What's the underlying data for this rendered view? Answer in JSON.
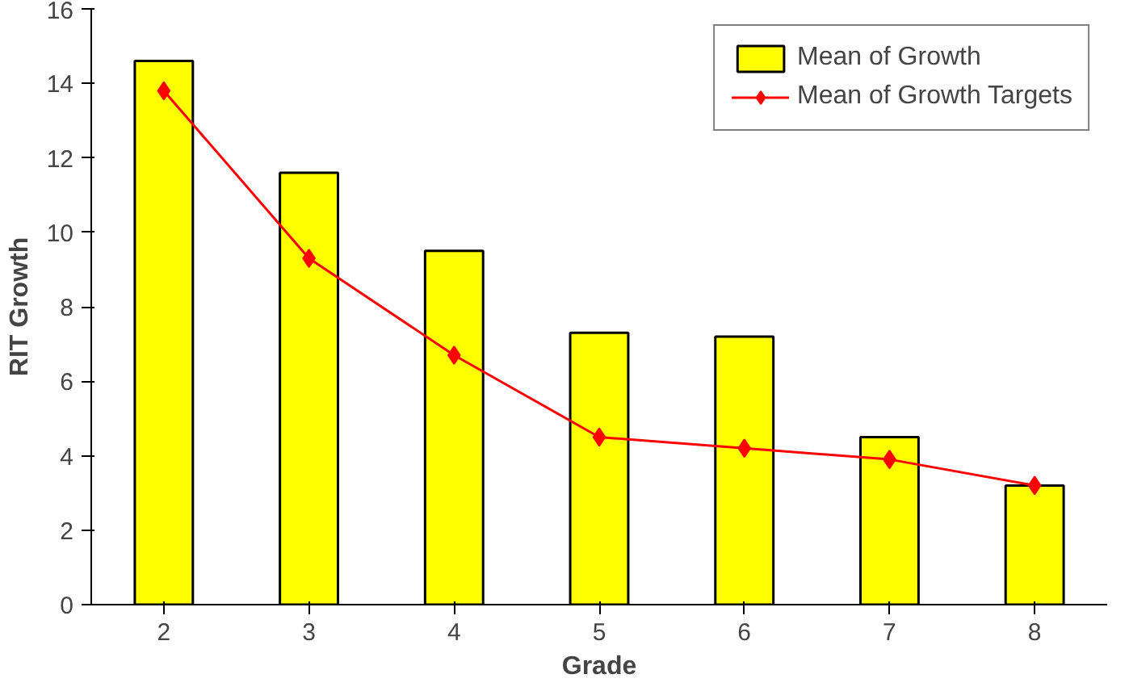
{
  "chart_data": {
    "type": "bar",
    "xlabel": "Grade",
    "ylabel": "RIT Growth",
    "categories": [
      "2",
      "3",
      "4",
      "5",
      "6",
      "7",
      "8"
    ],
    "series": [
      {
        "name": "Mean of Growth",
        "color": "#ffff00",
        "values": [
          14.6,
          11.6,
          9.5,
          7.3,
          7.2,
          4.5,
          3.2
        ]
      },
      {
        "name": "Mean of Growth Targets",
        "type": "line",
        "color": "#ff0000",
        "marker": "diamond",
        "values": [
          13.8,
          9.3,
          6.7,
          4.5,
          4.2,
          3.9,
          3.2
        ]
      }
    ],
    "ylim": [
      0,
      16
    ],
    "yticks": [
      0,
      2,
      4,
      6,
      8,
      10,
      12,
      14,
      16
    ],
    "grid": false,
    "legend": "top right"
  }
}
